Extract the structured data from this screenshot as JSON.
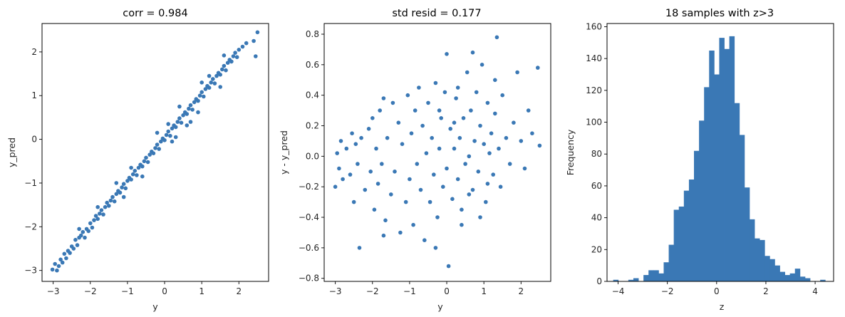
{
  "colors": {
    "marker": "#3a78b5",
    "bar": "#3a78b5",
    "axis": "#000000",
    "text": "#262626"
  },
  "chart_data": [
    {
      "type": "scatter",
      "title": "corr = 0.984",
      "xlabel": "y",
      "ylabel": "y_pred",
      "xlim": [
        -3.3,
        2.8
      ],
      "ylim": [
        -3.25,
        2.65
      ],
      "xticks": [
        -3,
        -2,
        -1,
        0,
        1,
        2
      ],
      "yticks": [
        -3,
        -2,
        -1,
        0,
        1,
        2
      ],
      "grid": false,
      "points": [
        [
          -3.02,
          -2.98
        ],
        [
          -2.95,
          -2.85
        ],
        [
          -2.9,
          -3.0
        ],
        [
          -2.85,
          -2.9
        ],
        [
          -2.8,
          -2.75
        ],
        [
          -2.75,
          -2.82
        ],
        [
          -2.7,
          -2.62
        ],
        [
          -2.65,
          -2.72
        ],
        [
          -2.6,
          -2.55
        ],
        [
          -2.55,
          -2.6
        ],
        [
          -2.5,
          -2.45
        ],
        [
          -2.45,
          -2.5
        ],
        [
          -2.4,
          -2.3
        ],
        [
          -2.35,
          -2.42
        ],
        [
          -2.3,
          -2.25
        ],
        [
          -2.25,
          -2.2
        ],
        [
          -2.2,
          -2.12
        ],
        [
          -2.15,
          -2.25
        ],
        [
          -2.1,
          -2.05
        ],
        [
          -2.05,
          -2.1
        ],
        [
          -2.0,
          -1.92
        ],
        [
          -1.95,
          -2.02
        ],
        [
          -1.9,
          -1.85
        ],
        [
          -1.85,
          -1.75
        ],
        [
          -1.8,
          -1.82
        ],
        [
          -1.75,
          -1.7
        ],
        [
          -1.7,
          -1.62
        ],
        [
          -1.65,
          -1.72
        ],
        [
          -1.6,
          -1.55
        ],
        [
          -1.55,
          -1.45
        ],
        [
          -1.5,
          -1.52
        ],
        [
          -1.45,
          -1.4
        ],
        [
          -1.4,
          -1.32
        ],
        [
          -1.35,
          -1.42
        ],
        [
          -1.3,
          -1.25
        ],
        [
          -1.25,
          -1.18
        ],
        [
          -1.2,
          -1.22
        ],
        [
          -1.15,
          -1.1
        ],
        [
          -1.1,
          -1.02
        ],
        [
          -1.05,
          -1.12
        ],
        [
          -1.0,
          -0.95
        ],
        [
          -0.95,
          -0.88
        ],
        [
          -0.9,
          -0.92
        ],
        [
          -0.85,
          -0.8
        ],
        [
          -0.8,
          -0.72
        ],
        [
          -0.75,
          -0.82
        ],
        [
          -0.7,
          -0.65
        ],
        [
          -0.65,
          -0.58
        ],
        [
          -0.6,
          -0.62
        ],
        [
          -0.55,
          -0.5
        ],
        [
          -0.5,
          -0.42
        ],
        [
          -0.45,
          -0.52
        ],
        [
          -0.4,
          -0.35
        ],
        [
          -0.35,
          -0.28
        ],
        [
          -0.3,
          -0.32
        ],
        [
          -0.25,
          -0.2
        ],
        [
          -0.2,
          -0.12
        ],
        [
          -0.15,
          -0.22
        ],
        [
          -0.1,
          -0.05
        ],
        [
          -0.05,
          0.02
        ],
        [
          0.0,
          -0.02
        ],
        [
          0.05,
          0.1
        ],
        [
          0.1,
          0.18
        ],
        [
          0.15,
          0.08
        ],
        [
          0.2,
          0.25
        ],
        [
          0.25,
          0.32
        ],
        [
          0.3,
          0.28
        ],
        [
          0.35,
          0.4
        ],
        [
          0.4,
          0.48
        ],
        [
          0.45,
          0.38
        ],
        [
          0.5,
          0.55
        ],
        [
          0.55,
          0.62
        ],
        [
          0.6,
          0.58
        ],
        [
          0.65,
          0.7
        ],
        [
          0.7,
          0.78
        ],
        [
          0.75,
          0.68
        ],
        [
          0.8,
          0.85
        ],
        [
          0.85,
          0.92
        ],
        [
          0.9,
          0.88
        ],
        [
          0.95,
          1.0
        ],
        [
          1.0,
          1.08
        ],
        [
          1.05,
          0.98
        ],
        [
          1.1,
          1.15
        ],
        [
          1.15,
          1.22
        ],
        [
          1.2,
          1.18
        ],
        [
          1.25,
          1.3
        ],
        [
          1.3,
          1.38
        ],
        [
          1.35,
          1.28
        ],
        [
          1.4,
          1.45
        ],
        [
          1.45,
          1.52
        ],
        [
          1.5,
          1.48
        ],
        [
          1.55,
          1.6
        ],
        [
          1.6,
          1.68
        ],
        [
          1.65,
          1.58
        ],
        [
          1.7,
          1.75
        ],
        [
          1.75,
          1.82
        ],
        [
          1.8,
          1.78
        ],
        [
          1.85,
          1.9
        ],
        [
          1.9,
          1.98
        ],
        [
          1.95,
          1.88
        ],
        [
          2.0,
          2.05
        ],
        [
          2.1,
          2.12
        ],
        [
          2.2,
          2.2
        ],
        [
          2.4,
          2.25
        ],
        [
          2.5,
          2.45
        ],
        [
          2.45,
          1.9
        ],
        [
          -1.3,
          -1.0
        ],
        [
          -0.2,
          0.15
        ],
        [
          0.2,
          -0.05
        ],
        [
          0.7,
          0.4
        ],
        [
          1.0,
          1.3
        ],
        [
          -0.6,
          -0.85
        ],
        [
          0.4,
          0.75
        ],
        [
          1.5,
          1.2
        ],
        [
          -1.8,
          -1.55
        ],
        [
          -0.9,
          -0.65
        ],
        [
          0.1,
          0.35
        ],
        [
          0.9,
          0.62
        ],
        [
          1.6,
          1.92
        ],
        [
          -2.3,
          -2.05
        ],
        [
          -1.1,
          -1.32
        ],
        [
          0.3,
          0.05
        ],
        [
          1.2,
          1.45
        ],
        [
          0.6,
          0.32
        ]
      ]
    },
    {
      "type": "scatter",
      "title": "std resid = 0.177",
      "xlabel": "y",
      "ylabel": "y - y_pred",
      "xlim": [
        -3.3,
        2.8
      ],
      "ylim": [
        -0.82,
        0.87
      ],
      "xticks": [
        -3,
        -2,
        -1,
        0,
        1,
        2
      ],
      "yticks": [
        -0.8,
        -0.6,
        -0.4,
        -0.2,
        0.0,
        0.2,
        0.4,
        0.6,
        0.8
      ],
      "yticklabels": [
        "−0.8",
        "−0.6",
        "−0.4",
        "−0.2",
        "0.0",
        "0.2",
        "0.4",
        "0.6",
        "0.8"
      ],
      "grid": false,
      "points": [
        [
          -3.0,
          -0.2
        ],
        [
          -2.95,
          0.02
        ],
        [
          -2.9,
          -0.08
        ],
        [
          -2.85,
          0.1
        ],
        [
          -2.8,
          -0.15
        ],
        [
          -2.7,
          0.05
        ],
        [
          -2.6,
          -0.12
        ],
        [
          -2.55,
          0.15
        ],
        [
          -2.5,
          -0.3
        ],
        [
          -2.45,
          0.08
        ],
        [
          -2.4,
          -0.05
        ],
        [
          -2.35,
          -0.6
        ],
        [
          -2.3,
          0.12
        ],
        [
          -2.2,
          -0.22
        ],
        [
          -2.1,
          0.18
        ],
        [
          -2.05,
          -0.1
        ],
        [
          -2.0,
          0.25
        ],
        [
          -1.95,
          -0.35
        ],
        [
          -1.9,
          0.05
        ],
        [
          -1.85,
          -0.18
        ],
        [
          -1.8,
          0.3
        ],
        [
          -1.75,
          -0.05
        ],
        [
          -1.7,
          0.38
        ],
        [
          -1.65,
          -0.42
        ],
        [
          -1.6,
          0.12
        ],
        [
          -1.5,
          -0.25
        ],
        [
          -1.45,
          0.35
        ],
        [
          -1.4,
          -0.1
        ],
        [
          -1.3,
          0.22
        ],
        [
          -1.25,
          -0.5
        ],
        [
          -1.2,
          0.08
        ],
        [
          -1.1,
          -0.3
        ],
        [
          -1.05,
          0.4
        ],
        [
          -1.0,
          -0.15
        ],
        [
          -0.95,
          0.15
        ],
        [
          -0.9,
          -0.45
        ],
        [
          -0.85,
          0.3
        ],
        [
          -0.8,
          -0.05
        ],
        [
          -0.75,
          0.45
        ],
        [
          -0.7,
          -0.22
        ],
        [
          -0.65,
          0.2
        ],
        [
          -0.6,
          -0.55
        ],
        [
          -0.55,
          0.02
        ],
        [
          -0.5,
          0.35
        ],
        [
          -0.45,
          -0.3
        ],
        [
          -0.4,
          0.12
        ],
        [
          -0.35,
          -0.12
        ],
        [
          -0.3,
          0.48
        ],
        [
          -0.25,
          -0.4
        ],
        [
          -0.2,
          0.05
        ],
        [
          -0.15,
          0.25
        ],
        [
          -0.1,
          -0.2
        ],
        [
          -0.05,
          0.42
        ],
        [
          0.0,
          -0.08
        ],
        [
          0.0,
          0.67
        ],
        [
          0.05,
          -0.72
        ],
        [
          0.1,
          0.18
        ],
        [
          0.15,
          -0.28
        ],
        [
          0.2,
          0.05
        ],
        [
          0.25,
          0.38
        ],
        [
          0.3,
          -0.15
        ],
        [
          0.35,
          0.12
        ],
        [
          0.4,
          -0.35
        ],
        [
          0.45,
          0.25
        ],
        [
          0.5,
          -0.05
        ],
        [
          0.55,
          0.55
        ],
        [
          0.6,
          0.0
        ],
        [
          0.65,
          0.3
        ],
        [
          0.7,
          -0.22
        ],
        [
          0.75,
          0.1
        ],
        [
          0.8,
          0.42
        ],
        [
          0.85,
          -0.1
        ],
        [
          0.9,
          0.2
        ],
        [
          0.95,
          0.6
        ],
        [
          1.0,
          0.08
        ],
        [
          1.05,
          -0.3
        ],
        [
          1.1,
          0.35
        ],
        [
          1.15,
          0.02
        ],
        [
          1.2,
          0.15
        ],
        [
          1.25,
          -0.12
        ],
        [
          1.3,
          0.28
        ],
        [
          1.35,
          0.78
        ],
        [
          1.4,
          0.05
        ],
        [
          1.45,
          -0.2
        ],
        [
          1.5,
          0.4
        ],
        [
          1.6,
          0.12
        ],
        [
          1.7,
          -0.05
        ],
        [
          1.8,
          0.22
        ],
        [
          1.9,
          0.55
        ],
        [
          2.0,
          0.1
        ],
        [
          2.1,
          -0.08
        ],
        [
          2.2,
          0.3
        ],
        [
          2.3,
          0.15
        ],
        [
          2.45,
          0.58
        ],
        [
          2.5,
          0.07
        ],
        [
          0.7,
          0.68
        ],
        [
          0.4,
          -0.45
        ],
        [
          -0.3,
          -0.6
        ],
        [
          0.2,
          0.22
        ],
        [
          0.9,
          -0.4
        ],
        [
          1.3,
          0.5
        ],
        [
          -1.7,
          -0.52
        ],
        [
          -0.2,
          0.3
        ],
        [
          0.3,
          0.45
        ],
        [
          0.6,
          -0.25
        ],
        [
          1.1,
          -0.18
        ]
      ]
    },
    {
      "type": "bar",
      "title": "18 samples with z>3",
      "xlabel": "z",
      "ylabel": "Frequency",
      "xlim": [
        -4.45,
        4.75
      ],
      "ylim": [
        0,
        162
      ],
      "xticks": [
        -4,
        -2,
        0,
        2,
        4
      ],
      "xticklabels": [
        "−4",
        "−2",
        "0",
        "2",
        "4"
      ],
      "yticks": [
        0,
        20,
        40,
        60,
        80,
        100,
        120,
        140,
        160
      ],
      "grid": false,
      "bin_edges": [
        -4.2,
        -3.995,
        -3.79,
        -3.585,
        -3.38,
        -3.175,
        -2.97,
        -2.765,
        -2.56,
        -2.355,
        -2.15,
        -1.945,
        -1.74,
        -1.535,
        -1.33,
        -1.125,
        -0.92,
        -0.715,
        -0.51,
        -0.305,
        -0.1,
        0.105,
        0.31,
        0.515,
        0.72,
        0.925,
        1.13,
        1.335,
        1.54,
        1.745,
        1.95,
        2.155,
        2.36,
        2.565,
        2.77,
        2.975,
        3.18,
        3.385,
        3.59,
        3.795,
        4.0,
        4.205,
        4.41
      ],
      "counts": [
        1,
        0,
        0,
        1,
        2,
        0,
        4,
        7,
        7,
        5,
        12,
        23,
        45,
        47,
        57,
        64,
        82,
        101,
        122,
        145,
        130,
        153,
        146,
        154,
        112,
        92,
        59,
        39,
        27,
        26,
        16,
        14,
        10,
        6,
        4,
        5,
        8,
        3,
        2,
        0,
        0,
        1
      ]
    }
  ]
}
